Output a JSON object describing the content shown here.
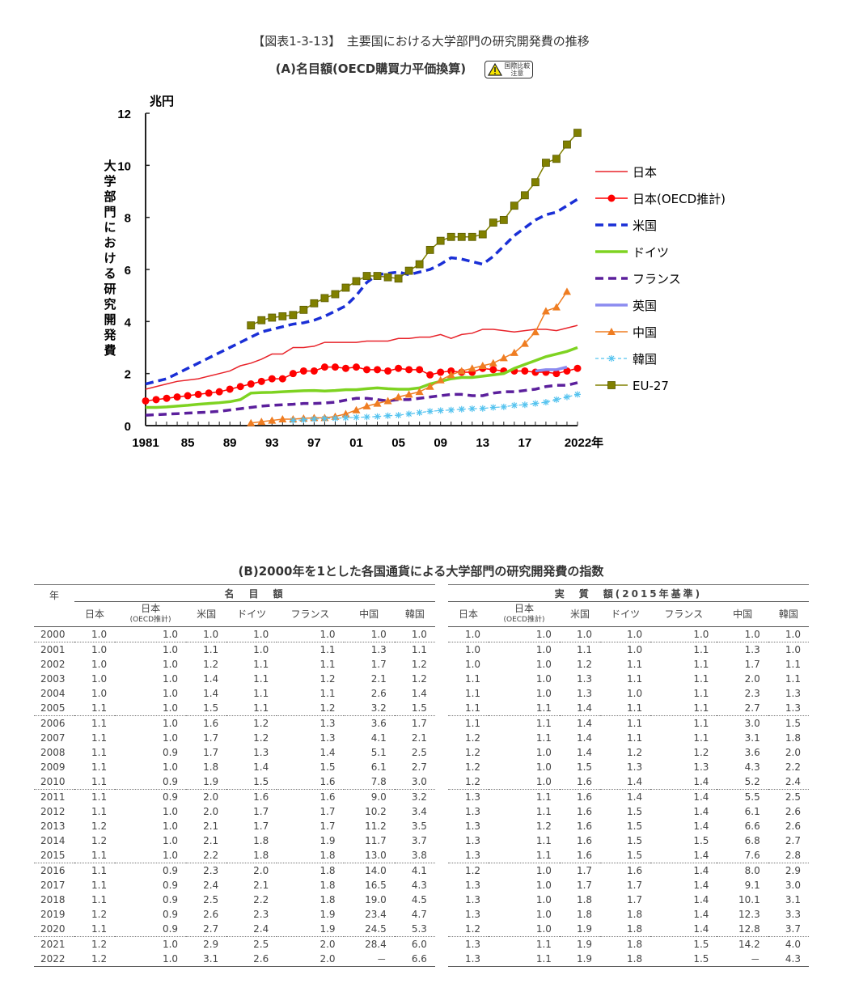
{
  "title": "【図表1-3-13】　主要国における大学部門の研究開発費の推移",
  "subtitle": "(A)名目額(OECD購買力平価換算)",
  "badge": {
    "line1": "国際比較",
    "line2": "注意",
    "icon": "warning-icon"
  },
  "chart_data": {
    "type": "line",
    "title": "(A)名目額(OECD購買力平価換算)",
    "unit": "兆円",
    "ylabel": "大学部門における研究開発費",
    "xlim": [
      1981,
      2022
    ],
    "ylim": [
      0,
      12
    ],
    "yticks": [
      0,
      2,
      4,
      6,
      8,
      10,
      12
    ],
    "xtick_labels": [
      {
        "x": 1981,
        "label": "1981"
      },
      {
        "x": 1985,
        "label": "85"
      },
      {
        "x": 1989,
        "label": "89"
      },
      {
        "x": 1993,
        "label": "93"
      },
      {
        "x": 1997,
        "label": "97"
      },
      {
        "x": 2001,
        "label": "01"
      },
      {
        "x": 2005,
        "label": "05"
      },
      {
        "x": 2009,
        "label": "09"
      },
      {
        "x": 2013,
        "label": "13"
      },
      {
        "x": 2017,
        "label": "17"
      },
      {
        "x": 2022,
        "label": "2022年"
      }
    ],
    "legend_position": "right",
    "series": [
      {
        "name": "日本",
        "color": "#e8232a",
        "style": "solid-thin",
        "start": 1981,
        "values": [
          1.4,
          1.5,
          1.6,
          1.7,
          1.75,
          1.8,
          1.9,
          2.0,
          2.1,
          2.3,
          2.4,
          2.55,
          2.75,
          2.75,
          3.0,
          3.0,
          3.05,
          3.2,
          3.2,
          3.2,
          3.2,
          3.25,
          3.25,
          3.25,
          3.35,
          3.35,
          3.4,
          3.4,
          3.5,
          3.35,
          3.5,
          3.55,
          3.7,
          3.7,
          3.65,
          3.6,
          3.65,
          3.7,
          3.7,
          3.65,
          3.75,
          3.85
        ]
      },
      {
        "name": "日本(OECD推計)",
        "color": "#ff0000",
        "style": "circle",
        "start": 1981,
        "values": [
          0.95,
          1.0,
          1.05,
          1.1,
          1.15,
          1.2,
          1.25,
          1.3,
          1.4,
          1.5,
          1.6,
          1.7,
          1.8,
          1.8,
          2.0,
          2.1,
          2.1,
          2.25,
          2.25,
          2.2,
          2.25,
          2.15,
          2.15,
          2.1,
          2.2,
          2.15,
          2.15,
          1.95,
          2.05,
          2.1,
          2.05,
          2.05,
          2.2,
          2.15,
          2.1,
          2.1,
          2.1,
          2.05,
          2.05,
          2.0,
          2.1,
          2.2
        ]
      },
      {
        "name": "米国",
        "color": "#1a2fd6",
        "style": "dash",
        "start": 1981,
        "values": [
          1.6,
          1.7,
          1.8,
          2.0,
          2.2,
          2.4,
          2.6,
          2.8,
          3.0,
          3.2,
          3.4,
          3.6,
          3.7,
          3.8,
          3.9,
          3.95,
          4.05,
          4.2,
          4.4,
          4.6,
          5.0,
          5.5,
          5.8,
          5.85,
          5.9,
          5.8,
          5.9,
          6.0,
          6.2,
          6.45,
          6.4,
          6.3,
          6.2,
          6.5,
          6.9,
          7.3,
          7.6,
          7.9,
          8.1,
          8.2,
          8.45,
          8.7
        ]
      },
      {
        "name": "ドイツ",
        "color": "#7ed321",
        "style": "solid-thick",
        "start": 1981,
        "values": [
          0.7,
          0.7,
          0.72,
          0.75,
          0.78,
          0.82,
          0.85,
          0.88,
          0.92,
          1.0,
          1.25,
          1.27,
          1.28,
          1.3,
          1.32,
          1.34,
          1.35,
          1.33,
          1.35,
          1.38,
          1.38,
          1.42,
          1.45,
          1.42,
          1.4,
          1.4,
          1.45,
          1.6,
          1.7,
          1.8,
          1.85,
          1.85,
          1.9,
          1.95,
          2.0,
          2.2,
          2.35,
          2.5,
          2.65,
          2.75,
          2.85,
          3.0
        ]
      },
      {
        "name": "フランス",
        "color": "#5b1f9c",
        "style": "dash",
        "start": 1981,
        "values": [
          0.4,
          0.42,
          0.44,
          0.46,
          0.48,
          0.5,
          0.52,
          0.55,
          0.6,
          0.65,
          0.7,
          0.75,
          0.78,
          0.8,
          0.82,
          0.85,
          0.85,
          0.87,
          0.9,
          0.98,
          1.05,
          1.05,
          1.0,
          0.95,
          1.0,
          1.0,
          1.05,
          1.1,
          1.15,
          1.2,
          1.2,
          1.15,
          1.15,
          1.25,
          1.3,
          1.3,
          1.35,
          1.4,
          1.5,
          1.55,
          1.55,
          1.65
        ]
      },
      {
        "name": "英国",
        "color": "#8c8cf0",
        "style": "solid-thick",
        "start": 2018,
        "values": [
          2.1,
          2.15,
          2.15,
          2.25
        ]
      },
      {
        "name": "中国",
        "color": "#ef7d22",
        "style": "triangle",
        "start": 1991,
        "values": [
          0.1,
          0.15,
          0.2,
          0.25,
          0.25,
          0.28,
          0.3,
          0.3,
          0.35,
          0.45,
          0.6,
          0.75,
          0.85,
          0.95,
          1.1,
          1.2,
          1.3,
          1.5,
          1.75,
          1.95,
          2.1,
          2.2,
          2.3,
          2.4,
          2.6,
          2.8,
          3.15,
          3.6,
          4.4,
          4.55,
          5.15
        ]
      },
      {
        "name": "韓国",
        "color": "#55c3ef",
        "style": "star",
        "start": 1995,
        "values": [
          0.2,
          0.22,
          0.25,
          0.27,
          0.28,
          0.3,
          0.32,
          0.33,
          0.35,
          0.38,
          0.4,
          0.45,
          0.5,
          0.55,
          0.58,
          0.6,
          0.63,
          0.65,
          0.66,
          0.7,
          0.72,
          0.78,
          0.8,
          0.85,
          0.9,
          1.0,
          1.1,
          1.2
        ]
      },
      {
        "name": "EU-27",
        "color": "#808000",
        "style": "square",
        "start": 1991,
        "values": [
          3.85,
          4.05,
          4.15,
          4.2,
          4.25,
          4.45,
          4.7,
          4.9,
          5.05,
          5.3,
          5.55,
          5.75,
          5.75,
          5.7,
          5.65,
          5.95,
          6.2,
          6.75,
          7.1,
          7.25,
          7.25,
          7.25,
          7.35,
          7.8,
          7.9,
          8.45,
          8.85,
          9.35,
          10.1,
          10.25,
          10.8,
          11.25
        ]
      }
    ]
  },
  "table": {
    "title": "(B)2000年を1とした各国通貨による大学部門の研究開発費の指数",
    "year_header": "年",
    "group_nominal": "名　目　額",
    "group_real": "実　質　額(2015年基準)",
    "columns": [
      "日本",
      "日本\n(OECD推計)",
      "米国",
      "ドイツ",
      "フランス",
      "中国",
      "韓国"
    ],
    "columns_oecd_line1": "日本",
    "columns_oecd_line2": "(OECD推計)",
    "rows": [
      {
        "year": "2000",
        "nominal": [
          "1.0",
          "1.0",
          "1.0",
          "1.0",
          "1.0",
          "1.0",
          "1.0"
        ],
        "real": [
          "1.0",
          "1.0",
          "1.0",
          "1.0",
          "1.0",
          "1.0",
          "1.0"
        ]
      },
      {
        "year": "2001",
        "nominal": [
          "1.0",
          "1.0",
          "1.1",
          "1.0",
          "1.1",
          "1.3",
          "1.1"
        ],
        "real": [
          "1.0",
          "1.0",
          "1.1",
          "1.0",
          "1.1",
          "1.3",
          "1.0"
        ]
      },
      {
        "year": "2002",
        "nominal": [
          "1.0",
          "1.0",
          "1.2",
          "1.1",
          "1.1",
          "1.7",
          "1.2"
        ],
        "real": [
          "1.0",
          "1.0",
          "1.2",
          "1.1",
          "1.1",
          "1.7",
          "1.1"
        ]
      },
      {
        "year": "2003",
        "nominal": [
          "1.0",
          "1.0",
          "1.4",
          "1.1",
          "1.2",
          "2.1",
          "1.2"
        ],
        "real": [
          "1.1",
          "1.0",
          "1.3",
          "1.1",
          "1.1",
          "2.0",
          "1.1"
        ]
      },
      {
        "year": "2004",
        "nominal": [
          "1.0",
          "1.0",
          "1.4",
          "1.1",
          "1.1",
          "2.6",
          "1.4"
        ],
        "real": [
          "1.1",
          "1.0",
          "1.3",
          "1.0",
          "1.1",
          "2.3",
          "1.3"
        ]
      },
      {
        "year": "2005",
        "nominal": [
          "1.1",
          "1.0",
          "1.5",
          "1.1",
          "1.2",
          "3.2",
          "1.5"
        ],
        "real": [
          "1.1",
          "1.1",
          "1.4",
          "1.1",
          "1.1",
          "2.7",
          "1.3"
        ]
      },
      {
        "year": "2006",
        "nominal": [
          "1.1",
          "1.0",
          "1.6",
          "1.2",
          "1.3",
          "3.6",
          "1.7"
        ],
        "real": [
          "1.1",
          "1.1",
          "1.4",
          "1.1",
          "1.1",
          "3.0",
          "1.5"
        ]
      },
      {
        "year": "2007",
        "nominal": [
          "1.1",
          "1.0",
          "1.7",
          "1.2",
          "1.3",
          "4.1",
          "2.1"
        ],
        "real": [
          "1.2",
          "1.1",
          "1.4",
          "1.1",
          "1.1",
          "3.1",
          "1.8"
        ]
      },
      {
        "year": "2008",
        "nominal": [
          "1.1",
          "0.9",
          "1.7",
          "1.3",
          "1.4",
          "5.1",
          "2.5"
        ],
        "real": [
          "1.2",
          "1.0",
          "1.4",
          "1.2",
          "1.2",
          "3.6",
          "2.0"
        ]
      },
      {
        "year": "2009",
        "nominal": [
          "1.1",
          "1.0",
          "1.8",
          "1.4",
          "1.5",
          "6.1",
          "2.7"
        ],
        "real": [
          "1.2",
          "1.0",
          "1.5",
          "1.3",
          "1.3",
          "4.3",
          "2.2"
        ]
      },
      {
        "year": "2010",
        "nominal": [
          "1.1",
          "0.9",
          "1.9",
          "1.5",
          "1.6",
          "7.8",
          "3.0"
        ],
        "real": [
          "1.2",
          "1.0",
          "1.6",
          "1.4",
          "1.4",
          "5.2",
          "2.4"
        ]
      },
      {
        "year": "2011",
        "nominal": [
          "1.1",
          "0.9",
          "2.0",
          "1.6",
          "1.6",
          "9.0",
          "3.2"
        ],
        "real": [
          "1.3",
          "1.1",
          "1.6",
          "1.4",
          "1.4",
          "5.5",
          "2.5"
        ]
      },
      {
        "year": "2012",
        "nominal": [
          "1.1",
          "1.0",
          "2.0",
          "1.7",
          "1.7",
          "10.2",
          "3.4"
        ],
        "real": [
          "1.3",
          "1.1",
          "1.6",
          "1.5",
          "1.4",
          "6.1",
          "2.6"
        ]
      },
      {
        "year": "2013",
        "nominal": [
          "1.2",
          "1.0",
          "2.1",
          "1.7",
          "1.7",
          "11.2",
          "3.5"
        ],
        "real": [
          "1.3",
          "1.2",
          "1.6",
          "1.5",
          "1.4",
          "6.6",
          "2.6"
        ]
      },
      {
        "year": "2014",
        "nominal": [
          "1.2",
          "1.0",
          "2.1",
          "1.8",
          "1.9",
          "11.7",
          "3.7"
        ],
        "real": [
          "1.3",
          "1.1",
          "1.6",
          "1.5",
          "1.5",
          "6.8",
          "2.7"
        ]
      },
      {
        "year": "2015",
        "nominal": [
          "1.1",
          "1.0",
          "2.2",
          "1.8",
          "1.8",
          "13.0",
          "3.8"
        ],
        "real": [
          "1.3",
          "1.1",
          "1.6",
          "1.5",
          "1.4",
          "7.6",
          "2.8"
        ]
      },
      {
        "year": "2016",
        "nominal": [
          "1.1",
          "0.9",
          "2.3",
          "2.0",
          "1.8",
          "14.0",
          "4.1"
        ],
        "real": [
          "1.2",
          "1.0",
          "1.7",
          "1.6",
          "1.4",
          "8.0",
          "2.9"
        ]
      },
      {
        "year": "2017",
        "nominal": [
          "1.1",
          "0.9",
          "2.4",
          "2.1",
          "1.8",
          "16.5",
          "4.3"
        ],
        "real": [
          "1.3",
          "1.0",
          "1.7",
          "1.7",
          "1.4",
          "9.1",
          "3.0"
        ]
      },
      {
        "year": "2018",
        "nominal": [
          "1.1",
          "0.9",
          "2.5",
          "2.2",
          "1.8",
          "19.0",
          "4.5"
        ],
        "real": [
          "1.3",
          "1.0",
          "1.8",
          "1.7",
          "1.4",
          "10.1",
          "3.1"
        ]
      },
      {
        "year": "2019",
        "nominal": [
          "1.2",
          "0.9",
          "2.6",
          "2.3",
          "1.9",
          "23.4",
          "4.7"
        ],
        "real": [
          "1.3",
          "1.0",
          "1.8",
          "1.8",
          "1.4",
          "12.3",
          "3.3"
        ]
      },
      {
        "year": "2020",
        "nominal": [
          "1.1",
          "0.9",
          "2.7",
          "2.4",
          "1.9",
          "24.5",
          "5.3"
        ],
        "real": [
          "1.2",
          "1.0",
          "1.9",
          "1.8",
          "1.4",
          "12.8",
          "3.7"
        ]
      },
      {
        "year": "2021",
        "nominal": [
          "1.2",
          "1.0",
          "2.9",
          "2.5",
          "2.0",
          "28.4",
          "6.0"
        ],
        "real": [
          "1.3",
          "1.1",
          "1.9",
          "1.8",
          "1.5",
          "14.2",
          "4.0"
        ]
      },
      {
        "year": "2022",
        "nominal": [
          "1.2",
          "1.0",
          "3.1",
          "2.6",
          "2.0",
          "－",
          "6.6"
        ],
        "real": [
          "1.3",
          "1.1",
          "1.9",
          "1.8",
          "1.5",
          "－",
          "4.3"
        ]
      }
    ]
  }
}
